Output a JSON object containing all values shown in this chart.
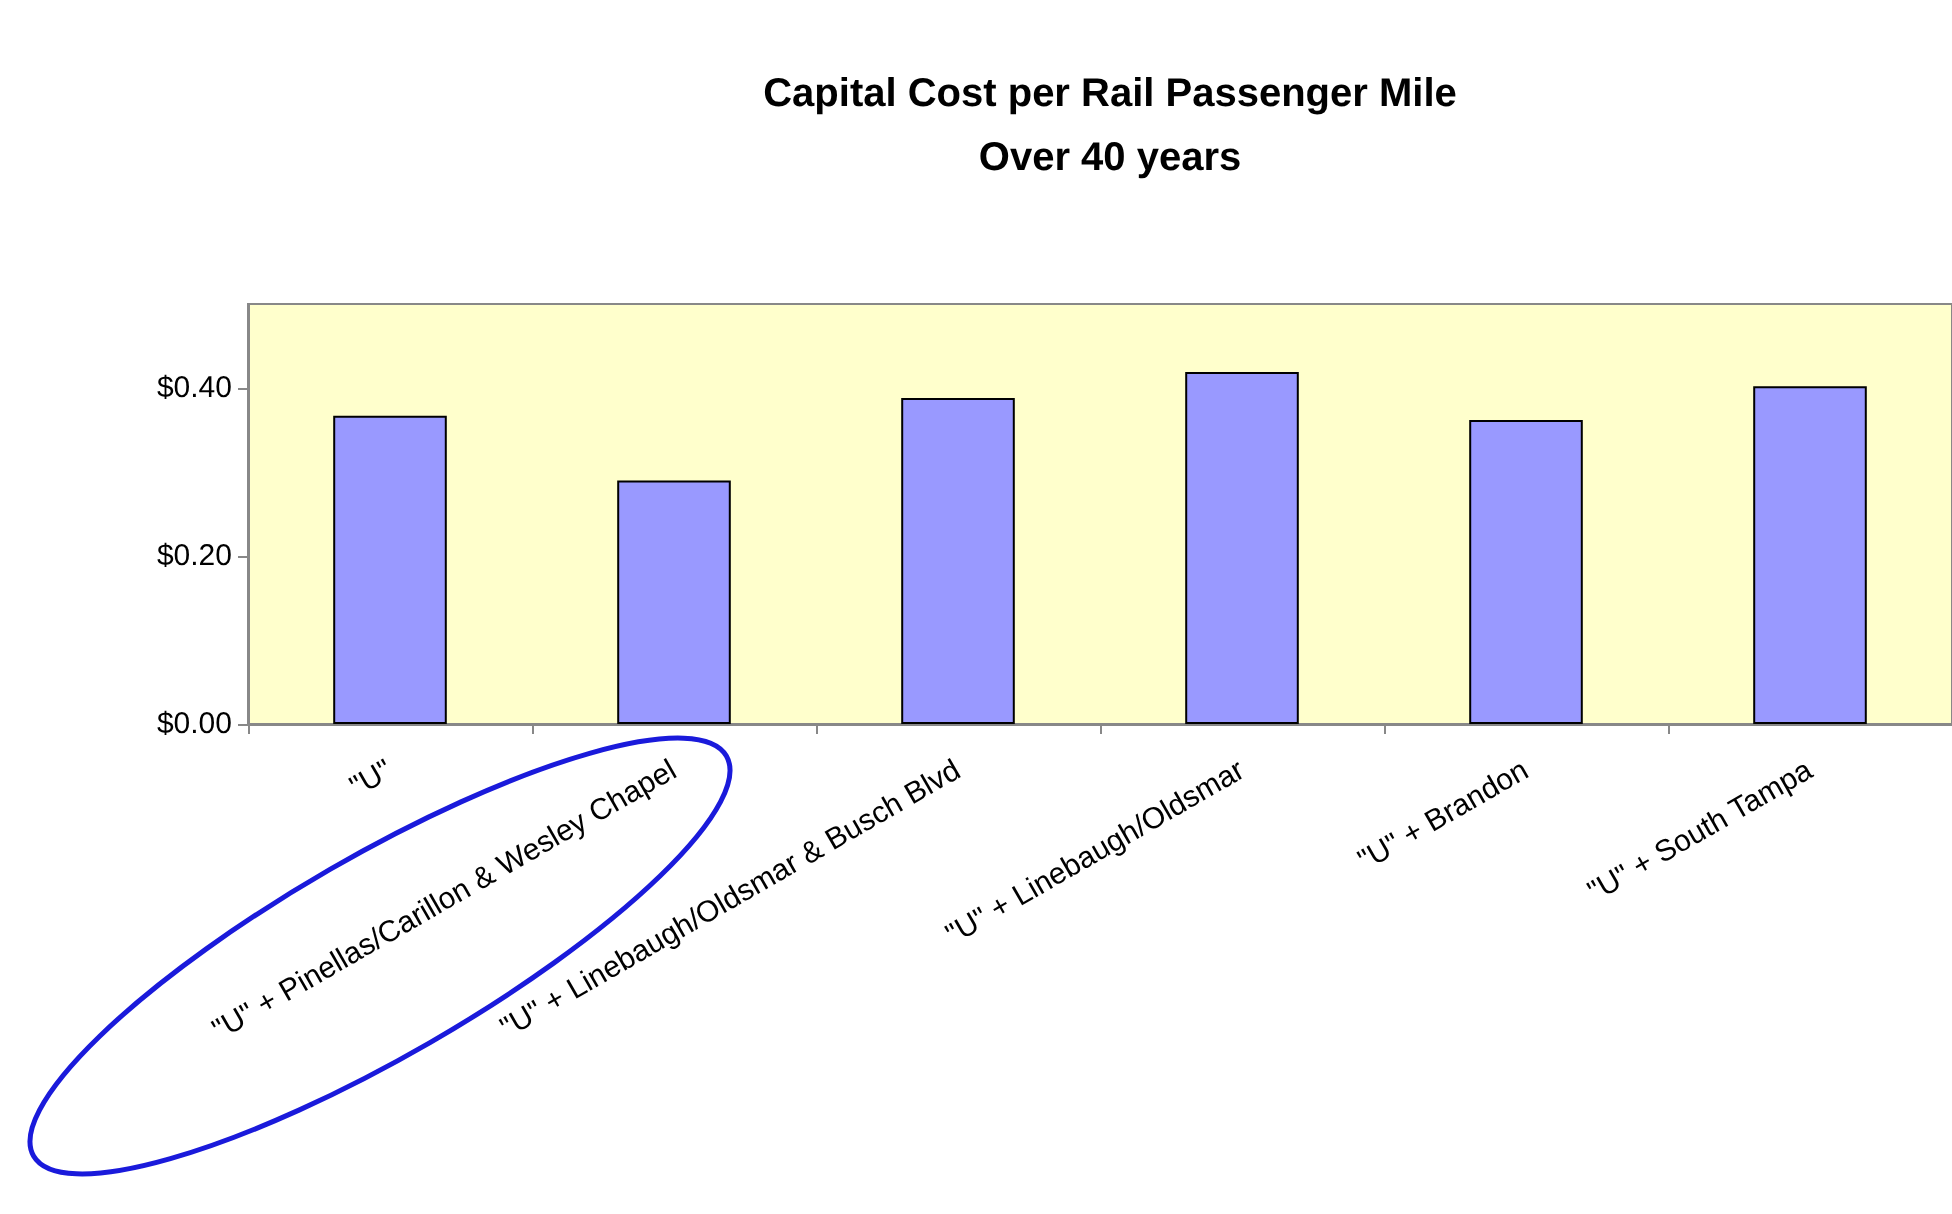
{
  "chart_data": {
    "type": "bar",
    "title": "Capital Cost per Rail Passenger Mile",
    "subtitle": "Over 40 years",
    "categories": [
      "\"U\"",
      "\"U\" + Pinellas/Carillon & Wesley Chapel",
      "\"U\" + Linebaugh/Oldsmar & Busch Blvd",
      "\"U\" + Linebaugh/Oldsmar",
      "\"U\" + Brandon",
      "\"U\" + South Tampa"
    ],
    "values": [
      0.367,
      0.29,
      0.388,
      0.419,
      0.362,
      0.402
    ],
    "color": "#9999ff",
    "ylim": [
      0,
      0.5
    ],
    "yticks": [
      {
        "value": 0,
        "label": "$0.00"
      },
      {
        "value": 0.2,
        "label": "$0.20"
      },
      {
        "value": 0.4,
        "label": "$0.40"
      }
    ],
    "grid": false
  }
}
